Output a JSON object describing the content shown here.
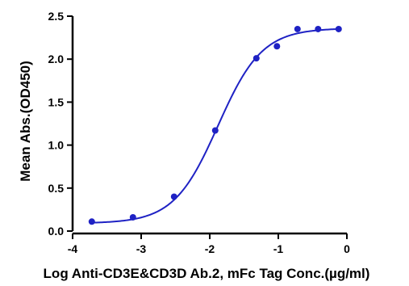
{
  "chart_data": {
    "type": "scatter",
    "title": "",
    "xlabel": "Log  Anti-CD3E&CD3D Ab.2, mFc Tag Conc.(µg/ml)",
    "ylabel": "Mean Abs.(OD450)",
    "xlim": [
      -4,
      0
    ],
    "ylim": [
      0,
      2.5
    ],
    "x_ticks": [
      "-4",
      "-3",
      "-2",
      "-1",
      "0"
    ],
    "y_ticks": [
      "0.0",
      "0.5",
      "1.0",
      "1.5",
      "2.0",
      "2.5"
    ],
    "grid": false,
    "legend": "none",
    "color": "#1f22c4",
    "series": [
      {
        "x": [
          -3.72,
          -3.12,
          -2.52,
          -1.92,
          -1.32,
          -1.02,
          -0.72,
          -0.42,
          -0.12
        ],
        "y": [
          0.11,
          0.16,
          0.4,
          1.17,
          2.01,
          2.15,
          2.35,
          2.35,
          2.35
        ]
      }
    ],
    "fit": {
      "type": "4PL",
      "bottom": 0.09,
      "top": 2.36,
      "logEC50": -1.88,
      "hill": 1.35
    }
  }
}
